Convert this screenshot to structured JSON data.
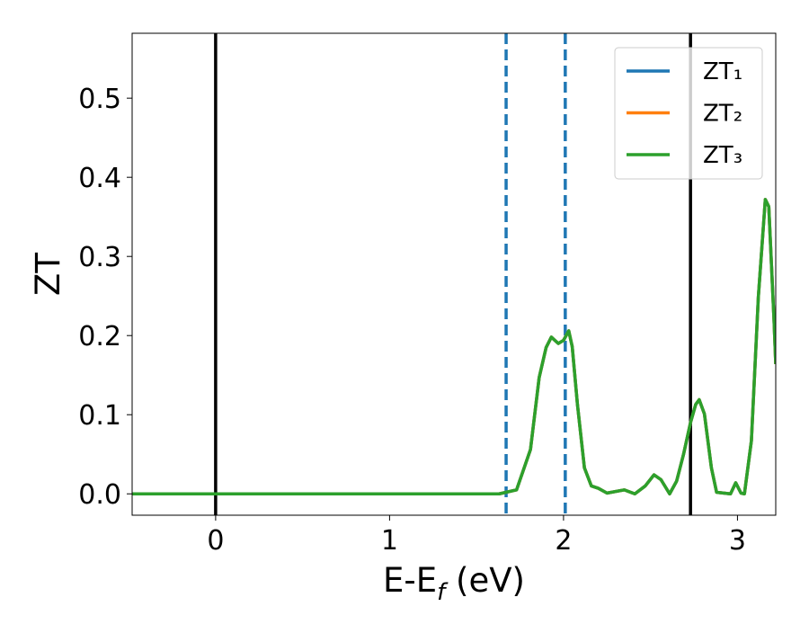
{
  "chart_data": {
    "type": "line",
    "xlabel": [
      "E-E",
      "f",
      " (eV)"
    ],
    "ylabel": "ZT",
    "x": [
      -0.48,
      1.63,
      1.73,
      1.81,
      1.86,
      1.9,
      1.93,
      1.97,
      2.0,
      2.03,
      2.05,
      2.08,
      2.12,
      2.16,
      2.2,
      2.25,
      2.35,
      2.41,
      2.47,
      2.52,
      2.56,
      2.61,
      2.65,
      2.69,
      2.73,
      2.76,
      2.78,
      2.81,
      2.85,
      2.88,
      2.92,
      2.96,
      2.99,
      3.02,
      3.04,
      3.08,
      3.12,
      3.16,
      3.18,
      3.21,
      3.22
    ],
    "series": [
      {
        "name": "ZT₁",
        "color": "#1f77b4",
        "values": [
          0,
          0,
          0.005,
          0.056,
          0.147,
          0.185,
          0.198,
          0.19,
          0.194,
          0.206,
          0.186,
          0.113,
          0.033,
          0.01,
          0.007,
          0.001,
          0.005,
          0,
          0.01,
          0.024,
          0.018,
          0,
          0.016,
          0.05,
          0.09,
          0.113,
          0.119,
          0.101,
          0.033,
          0.002,
          0.001,
          0,
          0.014,
          0.001,
          0,
          0.067,
          0.249,
          0.372,
          0.363,
          0.22,
          0.164
        ]
      },
      {
        "name": "ZT₂",
        "color": "#ff7f0e",
        "values": [
          0,
          0,
          0.005,
          0.056,
          0.147,
          0.185,
          0.198,
          0.19,
          0.194,
          0.206,
          0.186,
          0.113,
          0.033,
          0.01,
          0.007,
          0.001,
          0.005,
          0,
          0.01,
          0.024,
          0.018,
          0,
          0.016,
          0.05,
          0.09,
          0.113,
          0.119,
          0.101,
          0.033,
          0.002,
          0.001,
          0,
          0.014,
          0.001,
          0,
          0.067,
          0.249,
          0.372,
          0.363,
          0.22,
          0.164
        ]
      },
      {
        "name": "ZT₃",
        "color": "#2ca02c",
        "values": [
          0,
          0,
          0.005,
          0.056,
          0.147,
          0.185,
          0.198,
          0.19,
          0.194,
          0.206,
          0.186,
          0.113,
          0.033,
          0.01,
          0.007,
          0.001,
          0.005,
          0,
          0.01,
          0.024,
          0.018,
          0,
          0.016,
          0.05,
          0.09,
          0.113,
          0.119,
          0.101,
          0.033,
          0.002,
          0.001,
          0,
          0.014,
          0.001,
          0,
          0.067,
          0.249,
          0.372,
          0.363,
          0.22,
          0.164
        ]
      }
    ],
    "vlines": [
      {
        "x": 0,
        "color": "#000000",
        "style": "solid"
      },
      {
        "x": 2.73,
        "color": "#000000",
        "style": "solid"
      },
      {
        "x": 1.67,
        "color": "#1f77b4",
        "style": "dashed"
      },
      {
        "x": 2.01,
        "color": "#1f77b4",
        "style": "dashed"
      }
    ],
    "xlim": [
      -0.48,
      3.22
    ],
    "ylim": [
      -0.027,
      0.582
    ],
    "xticks": [
      0,
      1,
      2,
      3
    ],
    "yticks": [
      {
        "value": 0,
        "label": "0.0"
      },
      0.1,
      0.2,
      0.3,
      0.4,
      0.5
    ],
    "legend": "upper right"
  }
}
